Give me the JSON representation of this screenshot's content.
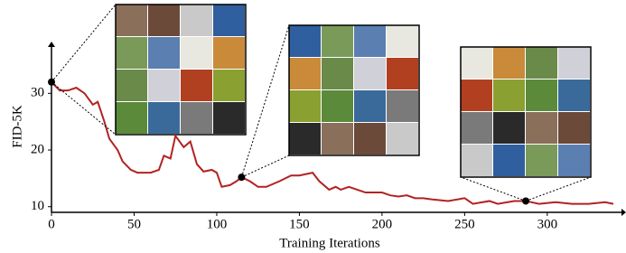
{
  "chart_data": {
    "type": "line",
    "x_label": "Training Iterations",
    "y_label": "FID-5K",
    "xlim": [
      0,
      346
    ],
    "ylim": [
      9,
      38.5
    ],
    "xticks": [
      0,
      50,
      100,
      150,
      200,
      250,
      300
    ],
    "yticks": [
      10,
      20,
      30
    ],
    "x": [
      0,
      5,
      10,
      15,
      20,
      25,
      28,
      32,
      35,
      40,
      43,
      48,
      52,
      60,
      65,
      68,
      72,
      75,
      80,
      84,
      88,
      92,
      97,
      100,
      103,
      108,
      112,
      115,
      120,
      125,
      130,
      138,
      145,
      150,
      158,
      162,
      168,
      172,
      175,
      180,
      185,
      190,
      195,
      200,
      205,
      210,
      215,
      220,
      225,
      230,
      240,
      250,
      255,
      265,
      270,
      280,
      287,
      295,
      305,
      315,
      325,
      335,
      340
    ],
    "series": [
      {
        "name": "FID-5K",
        "color": "#b22222",
        "values": [
          32,
          30.5,
          30.5,
          31,
          30,
          28,
          28.5,
          25,
          22,
          20,
          18,
          16.5,
          16,
          16,
          16.5,
          19,
          18.5,
          22.5,
          20.5,
          21.5,
          17.5,
          16.2,
          16.5,
          16,
          13.5,
          13.8,
          14.5,
          15.2,
          14.5,
          13.5,
          13.5,
          14.5,
          15.5,
          15.5,
          16,
          14.5,
          13,
          13.5,
          13,
          13.5,
          13,
          12.5,
          12.5,
          12.5,
          12,
          11.8,
          12,
          11.5,
          11.5,
          11.3,
          11,
          11.5,
          10.5,
          11,
          10.5,
          11,
          11,
          10.5,
          10.8,
          10.5,
          10.5,
          10.8,
          10.5
        ]
      }
    ],
    "markers": {
      "x": [
        0,
        115,
        287
      ],
      "y": [
        32,
        15.2,
        11
      ]
    }
  }
}
